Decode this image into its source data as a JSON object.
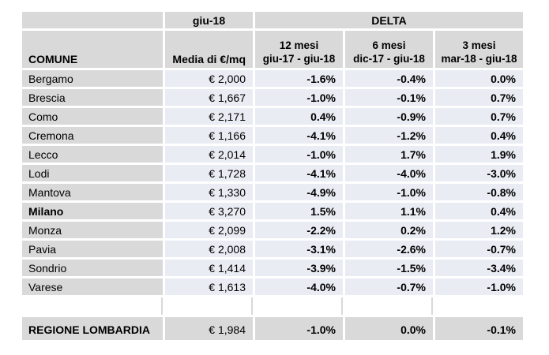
{
  "table": {
    "top_header": {
      "corner": "",
      "giu18": "giu-18",
      "delta": "DELTA"
    },
    "columns": {
      "comune": "COMUNE",
      "media": "Media di €/mq",
      "delta": [
        {
          "period": "12 mesi",
          "range": "giu-17 - giu-18"
        },
        {
          "period": "6 mesi",
          "range": "dic-17 - giu-18"
        },
        {
          "period": "3 mesi",
          "range": "mar-18 - giu-18"
        }
      ]
    },
    "rows": [
      {
        "comune": "Bergamo",
        "bold": false,
        "media": "€ 2,000",
        "delta_12m": "-1.6%",
        "delta_6m": "-0.4%",
        "delta_3m": "0.0%"
      },
      {
        "comune": "Brescia",
        "bold": false,
        "media": "€ 1,667",
        "delta_12m": "-1.0%",
        "delta_6m": "-0.1%",
        "delta_3m": "0.7%"
      },
      {
        "comune": "Como",
        "bold": false,
        "media": "€ 2,171",
        "delta_12m": "0.4%",
        "delta_6m": "-0.9%",
        "delta_3m": "0.7%"
      },
      {
        "comune": "Cremona",
        "bold": false,
        "media": "€ 1,166",
        "delta_12m": "-4.1%",
        "delta_6m": "-1.2%",
        "delta_3m": "0.4%"
      },
      {
        "comune": "Lecco",
        "bold": false,
        "media": "€ 2,014",
        "delta_12m": "-1.0%",
        "delta_6m": "1.7%",
        "delta_3m": "1.9%"
      },
      {
        "comune": "Lodi",
        "bold": false,
        "media": "€ 1,728",
        "delta_12m": "-4.1%",
        "delta_6m": "-4.0%",
        "delta_3m": "-3.0%"
      },
      {
        "comune": "Mantova",
        "bold": false,
        "media": "€ 1,330",
        "delta_12m": "-4.9%",
        "delta_6m": "-1.0%",
        "delta_3m": "-0.8%"
      },
      {
        "comune": "Milano",
        "bold": true,
        "media": "€ 3,270",
        "delta_12m": "1.5%",
        "delta_6m": "1.1%",
        "delta_3m": "0.4%"
      },
      {
        "comune": "Monza",
        "bold": false,
        "media": "€ 2,099",
        "delta_12m": "-2.2%",
        "delta_6m": "0.2%",
        "delta_3m": "1.2%"
      },
      {
        "comune": "Pavia",
        "bold": false,
        "media": "€ 2,008",
        "delta_12m": "-3.1%",
        "delta_6m": "-2.6%",
        "delta_3m": "-0.7%"
      },
      {
        "comune": "Sondrio",
        "bold": false,
        "media": "€ 1,414",
        "delta_12m": "-3.9%",
        "delta_6m": "-1.5%",
        "delta_3m": "-3.4%"
      },
      {
        "comune": "Varese",
        "bold": false,
        "media": "€ 1,613",
        "delta_12m": "-4.0%",
        "delta_6m": "-0.7%",
        "delta_3m": "-1.0%"
      }
    ],
    "footer": {
      "comune": "REGIONE LOMBARDIA",
      "media": "€ 1,984",
      "delta_12m": "-1.0%",
      "delta_6m": "0.0%",
      "delta_3m": "-0.1%"
    }
  },
  "colors": {
    "header_fill": "#d9d9d9",
    "value_fill": "#e9ecf3",
    "text": "#000000",
    "gap": "#ffffff"
  }
}
